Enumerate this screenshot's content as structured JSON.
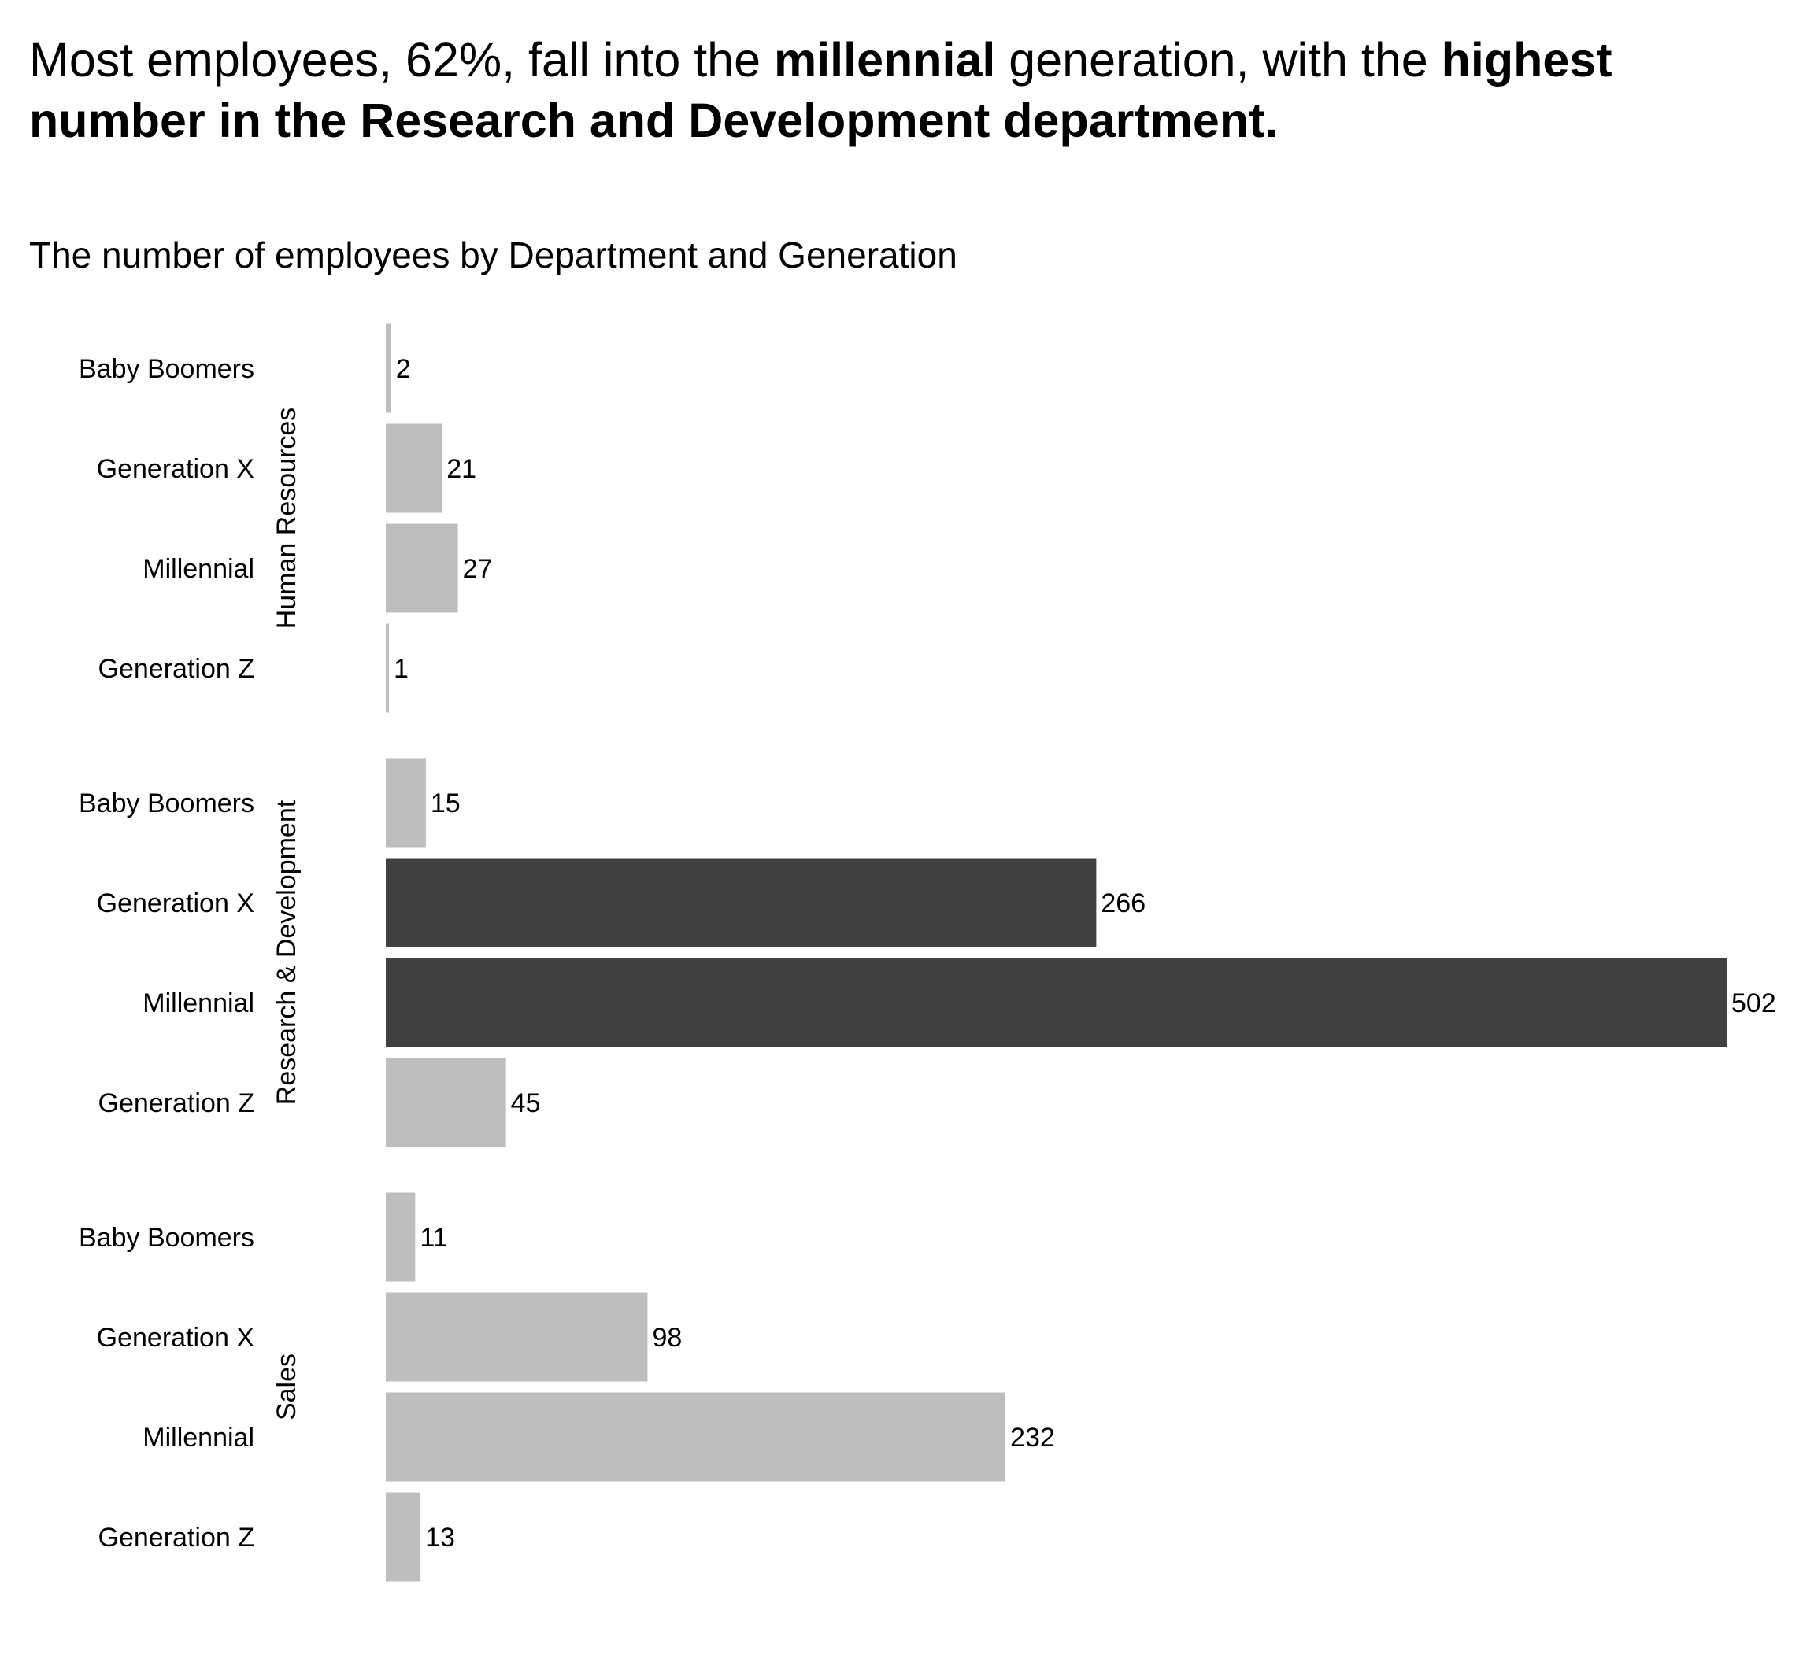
{
  "headline": {
    "part1": "Most employees, 62%, fall into the ",
    "bold1": "millennial",
    "part2": " generation, with the ",
    "bold2": "highest number in the Research and Development department."
  },
  "subtitle": "The number of employees by Department and Generation",
  "colors": {
    "bar_default": "#bebebe",
    "bar_highlight": "#404040",
    "text": "#000000"
  },
  "chart_data": {
    "type": "bar",
    "orientation": "horizontal",
    "title": "The number of employees by Department and Generation",
    "xlim": [
      0,
      502
    ],
    "grid": false,
    "groups": [
      {
        "department": "Human Resources",
        "bars": [
          {
            "generation": "Baby Boomers",
            "value": 2,
            "highlight": false
          },
          {
            "generation": "Generation X",
            "value": 21,
            "highlight": false
          },
          {
            "generation": "Millennial",
            "value": 27,
            "highlight": false
          },
          {
            "generation": "Generation Z",
            "value": 1,
            "highlight": false
          }
        ]
      },
      {
        "department": "Research & Development",
        "bars": [
          {
            "generation": "Baby Boomers",
            "value": 15,
            "highlight": false
          },
          {
            "generation": "Generation X",
            "value": 266,
            "highlight": true
          },
          {
            "generation": "Millennial",
            "value": 502,
            "highlight": true
          },
          {
            "generation": "Generation Z",
            "value": 45,
            "highlight": false
          }
        ]
      },
      {
        "department": "Sales",
        "bars": [
          {
            "generation": "Baby Boomers",
            "value": 11,
            "highlight": false
          },
          {
            "generation": "Generation X",
            "value": 98,
            "highlight": false
          },
          {
            "generation": "Millennial",
            "value": 232,
            "highlight": false
          },
          {
            "generation": "Generation Z",
            "value": 13,
            "highlight": false
          }
        ]
      }
    ]
  }
}
